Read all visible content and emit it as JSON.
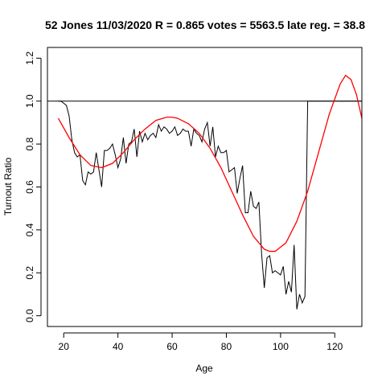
{
  "chart_data": {
    "type": "line",
    "title": "52 Jones 11/03/2020 R = 0.865 votes = 5563.5 late reg. = 38.8",
    "xlabel": "Age",
    "ylabel": "Turnout Ratio",
    "xlim": [
      14,
      130
    ],
    "ylim": [
      -0.05,
      1.25
    ],
    "x_ticks": [
      20,
      40,
      60,
      80,
      100,
      120
    ],
    "y_ticks": [
      0.0,
      0.2,
      0.4,
      0.6,
      0.8,
      1.0,
      1.2
    ],
    "x_tick_labels": [
      "20",
      "40",
      "60",
      "80",
      "100",
      "120"
    ],
    "y_tick_labels": [
      "0.0",
      "0.2",
      "0.4",
      "0.6",
      "0.8",
      "1.0",
      "1.2"
    ],
    "grid": false,
    "reference_line": {
      "y": 1.0,
      "color": "#000000"
    },
    "series": [
      {
        "color": "#000000",
        "x": [
          18,
          19,
          20,
          21,
          22,
          23,
          24,
          25,
          26,
          27,
          28,
          29,
          30,
          31,
          32,
          33,
          34,
          35,
          36,
          37,
          38,
          39,
          40,
          41,
          42,
          43,
          44,
          45,
          46,
          47,
          48,
          49,
          50,
          51,
          52,
          53,
          54,
          55,
          56,
          57,
          58,
          59,
          60,
          61,
          62,
          63,
          64,
          65,
          66,
          67,
          68,
          69,
          70,
          71,
          72,
          73,
          74,
          75,
          76,
          77,
          78,
          79,
          80,
          81,
          82,
          83,
          84,
          85,
          86,
          87,
          88,
          89,
          90,
          91,
          92,
          93,
          94,
          95,
          96,
          97,
          98,
          99,
          100,
          101,
          102,
          103,
          104,
          105,
          106,
          107,
          108,
          109,
          110,
          111,
          112,
          113,
          114,
          115,
          116,
          117,
          118,
          119,
          120,
          121,
          122,
          123,
          124,
          125,
          126,
          127,
          128,
          129,
          130
        ],
        "y": [
          1.0,
          1.0,
          0.99,
          0.98,
          0.93,
          0.82,
          0.76,
          0.74,
          0.75,
          0.63,
          0.61,
          0.67,
          0.66,
          0.67,
          0.76,
          0.68,
          0.6,
          0.77,
          0.77,
          0.78,
          0.8,
          0.75,
          0.69,
          0.73,
          0.83,
          0.71,
          0.8,
          0.81,
          0.87,
          0.74,
          0.86,
          0.81,
          0.85,
          0.82,
          0.84,
          0.85,
          0.83,
          0.89,
          0.86,
          0.88,
          0.87,
          0.85,
          0.86,
          0.88,
          0.84,
          0.85,
          0.87,
          0.86,
          0.86,
          0.79,
          0.87,
          0.85,
          0.84,
          0.81,
          0.87,
          0.9,
          0.79,
          0.88,
          0.74,
          0.79,
          0.76,
          0.76,
          0.77,
          0.67,
          0.68,
          0.69,
          0.57,
          0.64,
          0.7,
          0.48,
          0.48,
          0.58,
          0.51,
          0.5,
          0.53,
          0.29,
          0.13,
          0.27,
          0.28,
          0.2,
          0.21,
          0.2,
          0.19,
          0.23,
          0.1,
          0.16,
          0.11,
          0.33,
          0.03,
          0.1,
          0.06,
          0.09,
          1.0,
          1.0,
          1.0,
          1.0,
          1.0,
          1.0,
          1.0,
          1.0,
          1.0,
          1.0,
          1.0,
          1.0,
          1.0,
          1.0,
          1.0,
          1.0,
          1.0,
          1.0,
          1.0,
          1.0,
          1.0
        ]
      },
      {
        "color": "#ff0000",
        "x": [
          18,
          22,
          26,
          30,
          34,
          38,
          42,
          46,
          50,
          54,
          58,
          60,
          62,
          66,
          70,
          74,
          78,
          82,
          86,
          90,
          94,
          96,
          98,
          102,
          106,
          110,
          114,
          118,
          122,
          124,
          126,
          128,
          130
        ],
        "y": [
          0.92,
          0.83,
          0.75,
          0.7,
          0.69,
          0.71,
          0.76,
          0.82,
          0.87,
          0.91,
          0.925,
          0.925,
          0.92,
          0.895,
          0.85,
          0.78,
          0.69,
          0.58,
          0.47,
          0.37,
          0.31,
          0.3,
          0.3,
          0.34,
          0.44,
          0.58,
          0.76,
          0.94,
          1.08,
          1.12,
          1.1,
          1.03,
          0.92
        ]
      }
    ]
  }
}
